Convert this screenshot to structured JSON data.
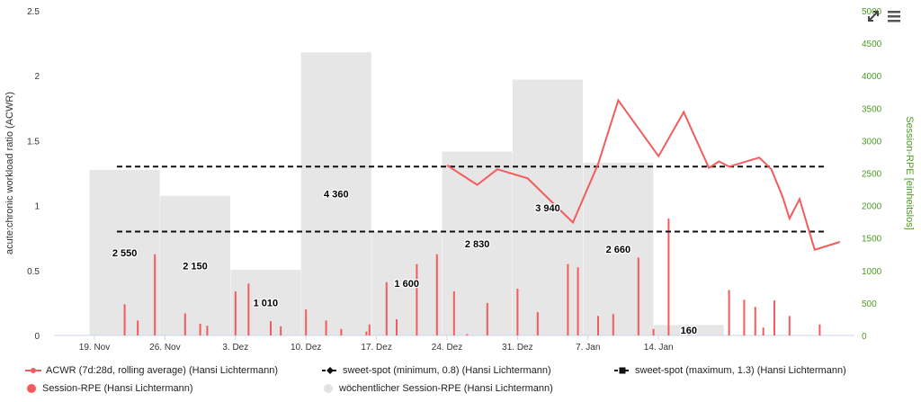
{
  "chart_data": {
    "type": "combo",
    "left_axis": {
      "title": "acute:chronic workload ratio (ACWR)",
      "min": 0,
      "max": 2.5,
      "ticks": [
        "0",
        "0.5",
        "1",
        "1.5",
        "2",
        "2.5"
      ]
    },
    "right_axis": {
      "title": "Session-RPE [einheitslos]",
      "min": 0,
      "max": 5000,
      "ticks": [
        "0",
        "500",
        "1000",
        "1500",
        "2000",
        "2500",
        "3000",
        "3500",
        "4000",
        "4500",
        "5000"
      ]
    },
    "x_ticks": [
      "19. Nov",
      "26. Nov",
      "3. Dez",
      "10. Dez",
      "17. Dez",
      "24. Dez",
      "31. Dez",
      "7. Jan",
      "14. Jan"
    ],
    "weekly": [
      {
        "week": 1,
        "value": 2550,
        "label": "2 550"
      },
      {
        "week": 2,
        "value": 2150,
        "label": "2 150"
      },
      {
        "week": 3,
        "value": 1010,
        "label": "1 010"
      },
      {
        "week": 4,
        "value": 4360,
        "label": "4 360"
      },
      {
        "week": 5,
        "value": 1600,
        "label": "1 600"
      },
      {
        "week": 6,
        "value": 2830,
        "label": "2 830"
      },
      {
        "week": 7,
        "value": 3940,
        "label": "3 940"
      },
      {
        "week": 8,
        "value": 2660,
        "label": "2 660"
      },
      {
        "week": 9,
        "value": 160,
        "label": "160"
      }
    ],
    "sessions": [
      {
        "day": 3.0,
        "value": 480
      },
      {
        "day": 4.3,
        "value": 230
      },
      {
        "day": 6.0,
        "value": 1250
      },
      {
        "day": 9.0,
        "value": 340
      },
      {
        "day": 10.5,
        "value": 180
      },
      {
        "day": 11.2,
        "value": 150
      },
      {
        "day": 14.0,
        "value": 680
      },
      {
        "day": 15.3,
        "value": 800
      },
      {
        "day": 17.5,
        "value": 220
      },
      {
        "day": 18.5,
        "value": 140
      },
      {
        "day": 21.0,
        "value": 400
      },
      {
        "day": 23.0,
        "value": 230
      },
      {
        "day": 24.5,
        "value": 100
      },
      {
        "day": 27.0,
        "value": 60
      },
      {
        "day": 27.3,
        "value": 170
      },
      {
        "day": 29.0,
        "value": 820
      },
      {
        "day": 30.0,
        "value": 250
      },
      {
        "day": 32.0,
        "value": 1100
      },
      {
        "day": 34.0,
        "value": 1250
      },
      {
        "day": 35.7,
        "value": 680
      },
      {
        "day": 37.0,
        "value": 20
      },
      {
        "day": 39.0,
        "value": 500
      },
      {
        "day": 42.0,
        "value": 720
      },
      {
        "day": 44.0,
        "value": 360
      },
      {
        "day": 47.0,
        "value": 1100
      },
      {
        "day": 48.0,
        "value": 1050
      },
      {
        "day": 50.0,
        "value": 300
      },
      {
        "day": 51.5,
        "value": 330
      },
      {
        "day": 54.0,
        "value": 1200
      },
      {
        "day": 55.5,
        "value": 100
      },
      {
        "day": 57.0,
        "value": 1800
      },
      {
        "day": 59.0,
        "value": 60
      },
      {
        "day": 63.0,
        "value": 700
      },
      {
        "day": 64.5,
        "value": 550
      },
      {
        "day": 65.6,
        "value": 440
      },
      {
        "day": 66.4,
        "value": 120
      },
      {
        "day": 67.5,
        "value": 540
      },
      {
        "day": 69.0,
        "value": 300
      },
      {
        "day": 72.0,
        "value": 170
      }
    ],
    "acwr": [
      {
        "day": 35.0,
        "value": 1.31
      },
      {
        "day": 38.0,
        "value": 1.16
      },
      {
        "day": 40.0,
        "value": 1.28
      },
      {
        "day": 43.0,
        "value": 1.21
      },
      {
        "day": 47.5,
        "value": 0.87
      },
      {
        "day": 50.0,
        "value": 1.32
      },
      {
        "day": 52.0,
        "value": 1.81
      },
      {
        "day": 56.0,
        "value": 1.38
      },
      {
        "day": 58.5,
        "value": 1.72
      },
      {
        "day": 61.0,
        "value": 1.29
      },
      {
        "day": 62.0,
        "value": 1.34
      },
      {
        "day": 63.0,
        "value": 1.3
      },
      {
        "day": 66.0,
        "value": 1.37
      },
      {
        "day": 67.2,
        "value": 1.28
      },
      {
        "day": 68.3,
        "value": 1.07
      },
      {
        "day": 69.0,
        "value": 0.9
      },
      {
        "day": 70.0,
        "value": 1.05
      },
      {
        "day": 71.5,
        "value": 0.66
      },
      {
        "day": 74.0,
        "value": 0.72
      }
    ],
    "sweet_spot_min": 0.8,
    "sweet_spot_max": 1.3,
    "colors": {
      "acwr": "#f25c5c",
      "session": "#f25c5c",
      "weekly": "#e6e6e6",
      "sweet": "#111111",
      "right_axis": "#4c9b22"
    }
  },
  "legend": {
    "acwr": "ACWR (7d:28d, rolling average) (Hansi Lichtermann)",
    "sweet_min": "sweet-spot (minimum, 0.8) (Hansi Lichtermann)",
    "sweet_max": "sweet-spot (maximum, 1.3) (Hansi Lichtermann)",
    "session": "Session-RPE (Hansi Lichtermann)",
    "weekly": "wöchentlicher Session-RPE (Hansi Lichtermann)"
  },
  "controls": {
    "expand_icon": "expand-icon",
    "menu_icon": "menu-icon"
  }
}
